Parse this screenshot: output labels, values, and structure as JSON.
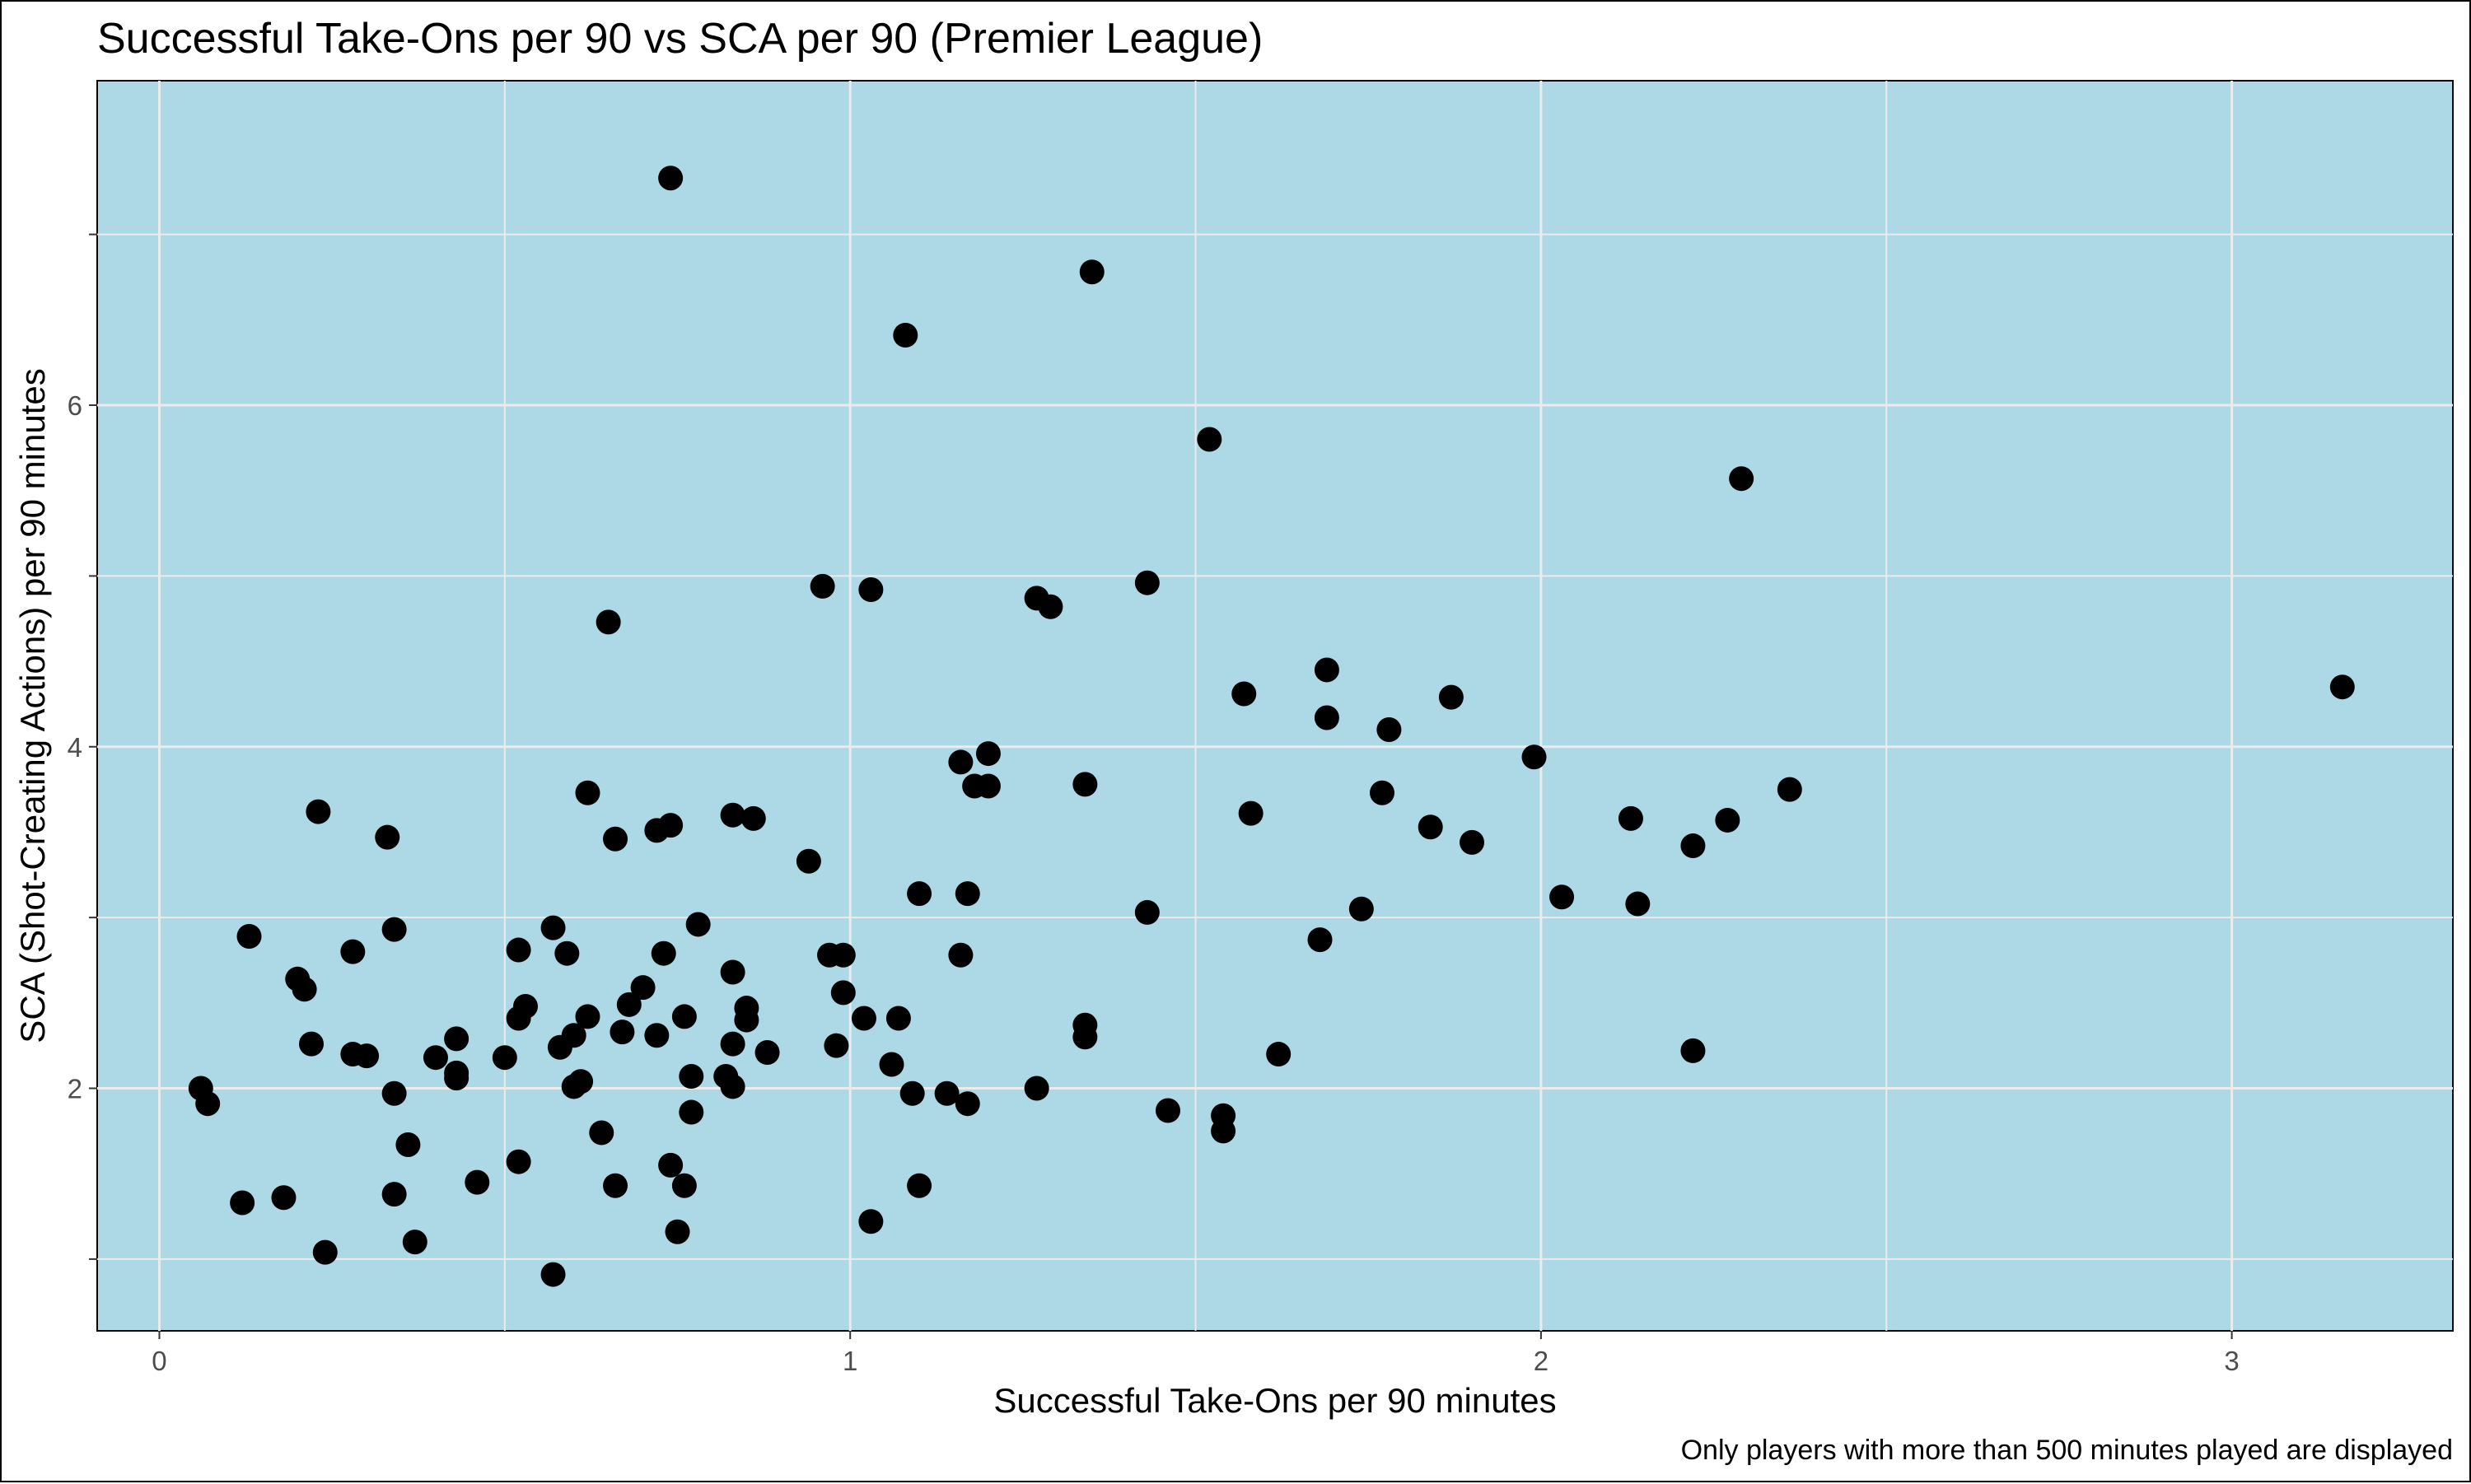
{
  "chart_data": {
    "type": "scatter",
    "title": "Successful Take-Ons per 90 vs SCA per 90 (Premier League)",
    "xlabel": "Successful Take-Ons per 90 minutes",
    "ylabel": "SCA (Shot-Creating Actions) per 90 minutes",
    "caption": "Only players with more than 500 minutes played are displayed",
    "xlim": [
      -0.09,
      3.32
    ],
    "ylim": [
      0.58,
      7.9
    ],
    "x_ticks": [
      0,
      1,
      2,
      3
    ],
    "x_tick_labels": [
      "0",
      "1",
      "2",
      "3"
    ],
    "y_ticks": [
      2,
      4,
      6
    ],
    "y_tick_labels": [
      "2",
      "4",
      "6"
    ],
    "x_minor_gridlines": [
      0.5,
      1.5,
      2.5
    ],
    "y_minor_gridlines": [
      1,
      3,
      5,
      7
    ],
    "grid": true,
    "legend": "none",
    "colors": {
      "panel_background": "#add8e6",
      "gridline": "#ebebeb",
      "point": "#000000"
    },
    "series": [
      {
        "points": [
          [
            0.06,
            2.0
          ],
          [
            0.07,
            1.91
          ],
          [
            0.12,
            1.33
          ],
          [
            0.13,
            2.89
          ],
          [
            0.18,
            1.36
          ],
          [
            0.2,
            2.64
          ],
          [
            0.21,
            2.58
          ],
          [
            0.22,
            2.26
          ],
          [
            0.23,
            3.62
          ],
          [
            0.24,
            1.04
          ],
          [
            0.28,
            2.8
          ],
          [
            0.28,
            2.2
          ],
          [
            0.3,
            2.19
          ],
          [
            0.33,
            3.47
          ],
          [
            0.34,
            2.93
          ],
          [
            0.34,
            1.97
          ],
          [
            0.34,
            1.38
          ],
          [
            0.36,
            1.67
          ],
          [
            0.37,
            1.1
          ],
          [
            0.4,
            2.18
          ],
          [
            0.43,
            2.29
          ],
          [
            0.43,
            2.06
          ],
          [
            0.43,
            2.09
          ],
          [
            0.46,
            1.45
          ],
          [
            0.5,
            2.18
          ],
          [
            0.52,
            2.41
          ],
          [
            0.52,
            2.81
          ],
          [
            0.53,
            2.48
          ],
          [
            0.52,
            1.57
          ],
          [
            0.57,
            2.94
          ],
          [
            0.57,
            0.91
          ],
          [
            0.58,
            2.24
          ],
          [
            0.59,
            2.79
          ],
          [
            0.6,
            2.31
          ],
          [
            0.6,
            2.01
          ],
          [
            0.61,
            2.04
          ],
          [
            0.62,
            2.42
          ],
          [
            0.62,
            3.73
          ],
          [
            0.64,
            1.74
          ],
          [
            0.65,
            4.73
          ],
          [
            0.66,
            1.43
          ],
          [
            0.66,
            3.46
          ],
          [
            0.67,
            2.33
          ],
          [
            0.68,
            2.49
          ],
          [
            0.7,
            2.59
          ],
          [
            0.72,
            3.51
          ],
          [
            0.72,
            2.31
          ],
          [
            0.73,
            2.79
          ],
          [
            0.74,
            1.55
          ],
          [
            0.74,
            3.54
          ],
          [
            0.74,
            7.33
          ],
          [
            0.75,
            1.16
          ],
          [
            0.76,
            2.42
          ],
          [
            0.76,
            1.43
          ],
          [
            0.77,
            1.86
          ],
          [
            0.77,
            2.07
          ],
          [
            0.78,
            2.96
          ],
          [
            0.82,
            2.07
          ],
          [
            0.83,
            2.68
          ],
          [
            0.83,
            2.26
          ],
          [
            0.83,
            2.01
          ],
          [
            0.83,
            3.6
          ],
          [
            0.85,
            2.47
          ],
          [
            0.85,
            2.4
          ],
          [
            0.86,
            3.58
          ],
          [
            0.88,
            2.21
          ],
          [
            0.94,
            3.33
          ],
          [
            0.96,
            4.94
          ],
          [
            0.97,
            2.78
          ],
          [
            0.99,
            2.78
          ],
          [
            0.98,
            2.25
          ],
          [
            0.99,
            2.56
          ],
          [
            1.02,
            2.41
          ],
          [
            1.03,
            1.22
          ],
          [
            1.03,
            4.92
          ],
          [
            1.06,
            2.14
          ],
          [
            1.07,
            2.41
          ],
          [
            1.08,
            6.41
          ],
          [
            1.09,
            1.97
          ],
          [
            1.1,
            3.14
          ],
          [
            1.1,
            1.43
          ],
          [
            1.14,
            1.97
          ],
          [
            1.16,
            3.91
          ],
          [
            1.16,
            2.78
          ],
          [
            1.17,
            3.14
          ],
          [
            1.17,
            1.91
          ],
          [
            1.18,
            3.77
          ],
          [
            1.2,
            3.77
          ],
          [
            1.2,
            3.96
          ],
          [
            1.27,
            2.0
          ],
          [
            1.27,
            4.87
          ],
          [
            1.29,
            4.82
          ],
          [
            1.34,
            3.78
          ],
          [
            1.34,
            2.37
          ],
          [
            1.34,
            2.3
          ],
          [
            1.35,
            6.78
          ],
          [
            1.43,
            3.03
          ],
          [
            1.43,
            4.96
          ],
          [
            1.46,
            1.87
          ],
          [
            1.52,
            5.8
          ],
          [
            1.54,
            1.84
          ],
          [
            1.54,
            1.75
          ],
          [
            1.57,
            4.31
          ],
          [
            1.58,
            3.61
          ],
          [
            1.62,
            2.2
          ],
          [
            1.68,
            2.87
          ],
          [
            1.69,
            4.45
          ],
          [
            1.69,
            4.17
          ],
          [
            1.74,
            3.05
          ],
          [
            1.77,
            3.73
          ],
          [
            1.78,
            4.1
          ],
          [
            1.84,
            3.53
          ],
          [
            1.87,
            4.29
          ],
          [
            1.9,
            3.44
          ],
          [
            1.99,
            3.94
          ],
          [
            2.03,
            3.12
          ],
          [
            2.13,
            3.58
          ],
          [
            2.14,
            3.08
          ],
          [
            2.22,
            2.22
          ],
          [
            2.22,
            3.42
          ],
          [
            2.27,
            3.57
          ],
          [
            2.29,
            5.57
          ],
          [
            2.36,
            3.75
          ],
          [
            3.16,
            4.35
          ]
        ]
      }
    ]
  }
}
